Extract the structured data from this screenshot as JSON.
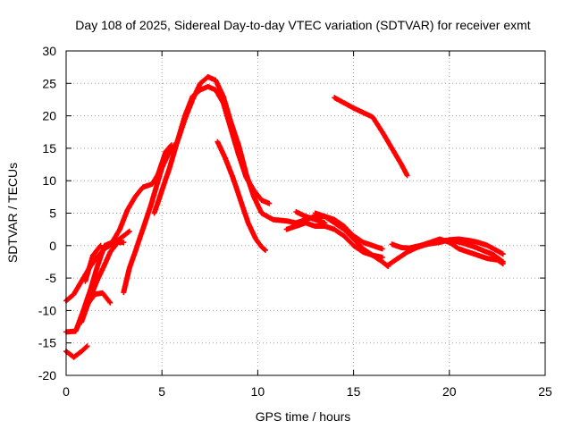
{
  "chart_data": {
    "type": "scatter",
    "title": "Day 108 of 2025, Sidereal Day-to-day VTEC variation (SDTVAR) for receiver exmt",
    "xlabel": "GPS time / hours",
    "ylabel": "SDTVAR / TECUs",
    "xlim": [
      0,
      25
    ],
    "ylim": [
      -20,
      30
    ],
    "xticks": [
      0,
      5,
      10,
      15,
      20,
      25
    ],
    "yticks": [
      -20,
      -15,
      -10,
      -5,
      0,
      5,
      10,
      15,
      20,
      25,
      30
    ],
    "grid": true,
    "marker": "+",
    "series_color": "#ff0000",
    "series": [
      {
        "name": "track-1",
        "points": [
          [
            0.0,
            -16.3
          ],
          [
            0.4,
            -17.2
          ],
          [
            0.8,
            -16.3
          ],
          [
            1.1,
            -15.5
          ]
        ]
      },
      {
        "name": "track-2",
        "points": [
          [
            0.0,
            -8.5
          ],
          [
            0.4,
            -7.5
          ],
          [
            0.8,
            -5.5
          ],
          [
            1.2,
            -3.5
          ],
          [
            1.6,
            -1.8
          ],
          [
            2.0,
            -0.5
          ],
          [
            2.5,
            0.4
          ],
          [
            3.0,
            1.5
          ],
          [
            3.3,
            2.2
          ]
        ]
      },
      {
        "name": "track-3",
        "points": [
          [
            0.0,
            -13.3
          ],
          [
            0.5,
            -13.2
          ],
          [
            0.9,
            -10.0
          ],
          [
            1.3,
            -6.5
          ],
          [
            1.6,
            -3.5
          ],
          [
            2.0,
            0.0
          ],
          [
            2.4,
            0.5
          ],
          [
            2.8,
            2.5
          ],
          [
            3.2,
            5.5
          ],
          [
            3.6,
            7.5
          ],
          [
            4.0,
            9.0
          ],
          [
            4.5,
            9.5
          ],
          [
            4.8,
            11.0
          ],
          [
            5.2,
            14.5
          ],
          [
            5.5,
            15.5
          ]
        ]
      },
      {
        "name": "track-4",
        "points": [
          [
            0.6,
            -12.5
          ],
          [
            1.0,
            -9.5
          ],
          [
            1.5,
            -7.5
          ],
          [
            1.9,
            -7.3
          ],
          [
            2.3,
            -8.8
          ]
        ]
      },
      {
        "name": "track-5",
        "points": [
          [
            0.8,
            -11.8
          ],
          [
            1.2,
            -8.5
          ],
          [
            1.6,
            -5.5
          ],
          [
            2.0,
            -3.0
          ],
          [
            2.3,
            -1.0
          ],
          [
            2.7,
            0.5
          ],
          [
            3.0,
            0.5
          ]
        ]
      },
      {
        "name": "track-6",
        "points": [
          [
            1.0,
            -5.5
          ],
          [
            1.4,
            -1.5
          ],
          [
            1.8,
            0.0
          ]
        ]
      },
      {
        "name": "track-7",
        "points": [
          [
            3.0,
            -7.2
          ],
          [
            3.3,
            -3.5
          ],
          [
            3.6,
            -1.0
          ],
          [
            4.0,
            2.5
          ],
          [
            4.4,
            6.0
          ],
          [
            4.7,
            9.0
          ],
          [
            5.0,
            12.0
          ],
          [
            5.4,
            14.5
          ],
          [
            5.8,
            16.0
          ],
          [
            6.2,
            20.0
          ],
          [
            6.6,
            23.0
          ],
          [
            7.0,
            24.0
          ],
          [
            7.4,
            24.5
          ],
          [
            7.8,
            24.0
          ],
          [
            8.2,
            22.0
          ],
          [
            8.6,
            18.0
          ],
          [
            9.0,
            14.0
          ],
          [
            9.4,
            10.5
          ],
          [
            9.8,
            8.5
          ],
          [
            10.2,
            7.0
          ],
          [
            10.6,
            6.5
          ]
        ]
      },
      {
        "name": "track-8",
        "points": [
          [
            4.6,
            5.0
          ],
          [
            5.0,
            8.5
          ],
          [
            5.4,
            12.0
          ],
          [
            5.8,
            16.0
          ],
          [
            6.2,
            19.5
          ],
          [
            6.6,
            22.5
          ],
          [
            7.0,
            25.0
          ],
          [
            7.4,
            26.0
          ],
          [
            7.8,
            25.5
          ],
          [
            8.2,
            23.0
          ],
          [
            8.6,
            19.0
          ],
          [
            9.0,
            15.5
          ],
          [
            9.4,
            11.0
          ],
          [
            9.8,
            7.5
          ],
          [
            10.2,
            5.0
          ],
          [
            10.8,
            4.0
          ],
          [
            11.5,
            3.8
          ],
          [
            12.0,
            3.5
          ],
          [
            12.5,
            4.0
          ],
          [
            13.0,
            4.5
          ],
          [
            13.5,
            4.5
          ],
          [
            14.0,
            3.5
          ],
          [
            14.5,
            2.5
          ],
          [
            15.0,
            1.0
          ],
          [
            15.5,
            -0.5
          ],
          [
            16.0,
            -1.5
          ],
          [
            16.5,
            -2.5
          ],
          [
            16.8,
            -3.2
          ]
        ]
      },
      {
        "name": "track-9",
        "points": [
          [
            7.9,
            16.0
          ],
          [
            8.3,
            13.5
          ],
          [
            8.7,
            10.5
          ],
          [
            9.1,
            7.0
          ],
          [
            9.5,
            3.5
          ],
          [
            9.9,
            1.0
          ],
          [
            10.2,
            -0.2
          ],
          [
            10.4,
            -0.7
          ]
        ]
      },
      {
        "name": "track-10",
        "points": [
          [
            11.5,
            2.5
          ],
          [
            12.0,
            3.0
          ],
          [
            12.5,
            3.5
          ],
          [
            13.0,
            3.0
          ],
          [
            13.5,
            3.0
          ],
          [
            14.0,
            2.5
          ],
          [
            14.5,
            1.5
          ],
          [
            15.0,
            0.0
          ],
          [
            15.5,
            -1.0
          ],
          [
            16.0,
            -1.5
          ],
          [
            16.5,
            -1.8
          ]
        ]
      },
      {
        "name": "track-11",
        "points": [
          [
            13.0,
            5.0
          ],
          [
            13.5,
            4.5
          ],
          [
            14.0,
            4.0
          ],
          [
            14.5,
            3.0
          ],
          [
            15.0,
            1.5
          ],
          [
            15.5,
            0.5
          ],
          [
            16.0,
            0.0
          ],
          [
            16.5,
            -0.5
          ]
        ]
      },
      {
        "name": "track-12",
        "points": [
          [
            12.0,
            5.2
          ],
          [
            12.5,
            4.5
          ],
          [
            13.0,
            4.0
          ],
          [
            13.5,
            3.5
          ]
        ]
      },
      {
        "name": "track-13",
        "points": [
          [
            14.0,
            22.8
          ],
          [
            14.5,
            22.0
          ],
          [
            15.0,
            21.2
          ],
          [
            15.5,
            20.5
          ],
          [
            16.0,
            19.8
          ],
          [
            16.5,
            17.5
          ],
          [
            17.0,
            15.0
          ],
          [
            17.5,
            12.5
          ],
          [
            17.8,
            10.8
          ]
        ]
      },
      {
        "name": "track-14",
        "points": [
          [
            16.8,
            -3.0
          ],
          [
            17.3,
            -2.0
          ],
          [
            17.8,
            -1.0
          ],
          [
            18.3,
            -0.3
          ],
          [
            18.8,
            0.2
          ],
          [
            19.3,
            0.5
          ],
          [
            19.8,
            0.8
          ],
          [
            20.3,
            0.7
          ],
          [
            20.8,
            0.3
          ],
          [
            21.3,
            -0.2
          ],
          [
            21.8,
            -0.8
          ],
          [
            22.3,
            -1.4
          ],
          [
            22.8,
            -2.5
          ]
        ]
      },
      {
        "name": "track-15",
        "points": [
          [
            17.0,
            0.2
          ],
          [
            17.5,
            -0.3
          ],
          [
            18.0,
            -0.4
          ],
          [
            18.5,
            0.0
          ],
          [
            19.0,
            0.5
          ],
          [
            19.5,
            1.0
          ],
          [
            20.0,
            0.5
          ],
          [
            20.5,
            -0.5
          ],
          [
            21.0,
            -1.0
          ],
          [
            21.5,
            -1.5
          ],
          [
            22.0,
            -2.0
          ],
          [
            22.5,
            -2.2
          ],
          [
            22.8,
            -2.8
          ]
        ]
      },
      {
        "name": "track-16",
        "points": [
          [
            18.0,
            -0.3
          ],
          [
            18.5,
            0.0
          ],
          [
            19.0,
            0.3
          ],
          [
            19.5,
            0.5
          ],
          [
            20.0,
            0.9
          ],
          [
            20.5,
            1.0
          ],
          [
            21.0,
            0.8
          ],
          [
            21.5,
            0.5
          ],
          [
            22.0,
            0.0
          ],
          [
            22.5,
            -0.8
          ],
          [
            22.8,
            -1.3
          ]
        ]
      }
    ]
  }
}
